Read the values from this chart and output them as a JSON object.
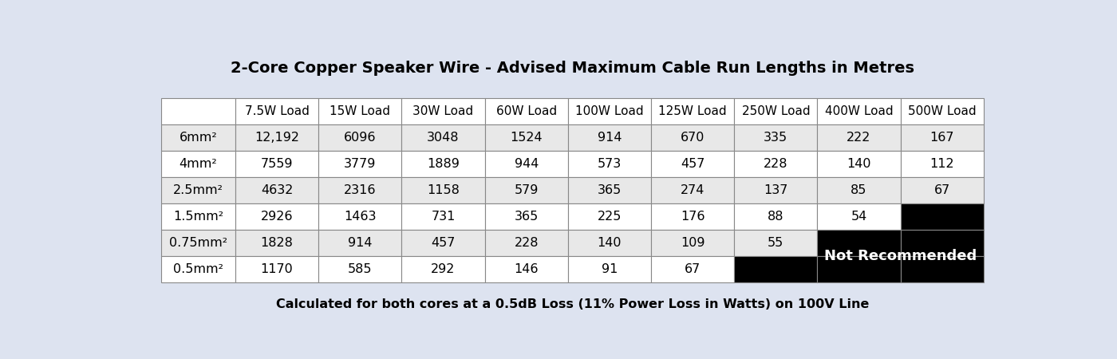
{
  "title": "2-Core Copper Speaker Wire - Advised Maximum Cable Run Lengths in Metres",
  "subtitle": "Calculated for both cores at a 0.5dB Loss (11% Power Loss in Watts) on 100V Line",
  "background_color": "#dde3f0",
  "col_headers": [
    "",
    "7.5W Load",
    "15W Load",
    "30W Load",
    "60W Load",
    "100W Load",
    "125W Load",
    "250W Load",
    "400W Load",
    "500W Load"
  ],
  "row_labels": [
    "6mm²",
    "4mm²",
    "2.5mm²",
    "1.5mm²",
    "0.75mm²",
    "0.5mm²"
  ],
  "table_data": [
    [
      "12,192",
      "6096",
      "3048",
      "1524",
      "914",
      "670",
      "335",
      "222",
      "167"
    ],
    [
      "7559",
      "3779",
      "1889",
      "944",
      "573",
      "457",
      "228",
      "140",
      "112"
    ],
    [
      "4632",
      "2316",
      "1158",
      "579",
      "365",
      "274",
      "137",
      "85",
      "67"
    ],
    [
      "2926",
      "1463",
      "731",
      "365",
      "225",
      "176",
      "88",
      "54",
      ""
    ],
    [
      "1828",
      "914",
      "457",
      "228",
      "140",
      "109",
      "55",
      "",
      ""
    ],
    [
      "1170",
      "585",
      "292",
      "146",
      "91",
      "67",
      "",
      "",
      ""
    ]
  ],
  "not_recommended_label": "Not Recommended",
  "not_recommended_color": "#000000",
  "not_recommended_text_color": "#ffffff",
  "header_row_color": "#ffffff",
  "row_colors": [
    "#e8e8e8",
    "#ffffff",
    "#e8e8e8",
    "#ffffff",
    "#e8e8e8",
    "#ffffff"
  ],
  "cell_text_color": "#000000",
  "grid_color": "#888888",
  "title_fontsize": 14,
  "subtitle_fontsize": 11.5,
  "cell_fontsize": 11.5,
  "header_fontsize": 11
}
